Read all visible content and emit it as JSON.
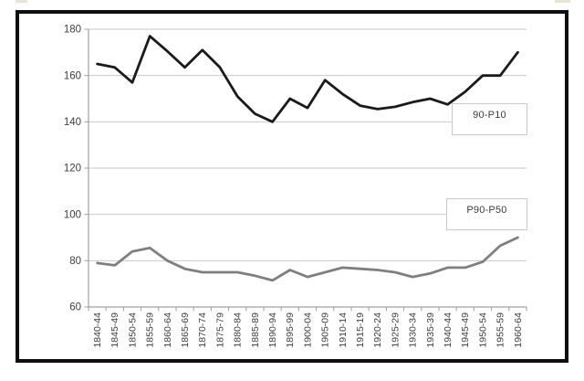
{
  "figure": {
    "legend_boxes": [
      {
        "label": "90-P10"
      },
      {
        "label": "P90-P50"
      }
    ],
    "colors": {
      "frame": "#0f0f0f",
      "grid": "#c9c9c9",
      "axis": "#a0a0a0",
      "tick_text": "#3d3d3d",
      "legend_border": "#c9c9c9",
      "highlight_fragment": "#ebe3d3"
    }
  },
  "chart_data": {
    "type": "line",
    "title": "",
    "xlabel": "",
    "ylabel": "",
    "categories": [
      "1840-44",
      "1845-49",
      "1850-54",
      "1855-59",
      "1860-64",
      "1865-69",
      "1870-74",
      "1875-79",
      "1880-84",
      "1885-89",
      "1890-94",
      "1895-99",
      "1900-04",
      "1905-09",
      "1910-14",
      "1915-19",
      "1920-24",
      "1925-29",
      "1930-34",
      "1935-39",
      "1940-44",
      "1945-49",
      "1950-54",
      "1955-59",
      "1960-64"
    ],
    "series": [
      {
        "name": "90-P10",
        "color": "#1a1a1a",
        "values": [
          165,
          163.5,
          157,
          177,
          170.5,
          163.5,
          171,
          163.5,
          151,
          143.5,
          140,
          150,
          146,
          158,
          152,
          147,
          145.5,
          146.5,
          148.5,
          150,
          147.5,
          153,
          160,
          160,
          170
        ]
      },
      {
        "name": "P90-P50",
        "color": "#7f7f7f",
        "values": [
          79,
          78,
          84,
          85.5,
          80,
          76.5,
          75,
          75,
          75,
          73.5,
          71.5,
          76,
          73,
          75,
          77,
          76.5,
          76,
          75,
          73,
          74.5,
          77,
          77,
          79.5,
          86.5,
          90
        ]
      }
    ],
    "ylim": [
      60,
      180
    ],
    "yticks": [
      60,
      80,
      100,
      120,
      140,
      160,
      180
    ],
    "grid": true,
    "x_tick_rotation": -90,
    "legend_position": "inside-right-stacked-boxes"
  }
}
